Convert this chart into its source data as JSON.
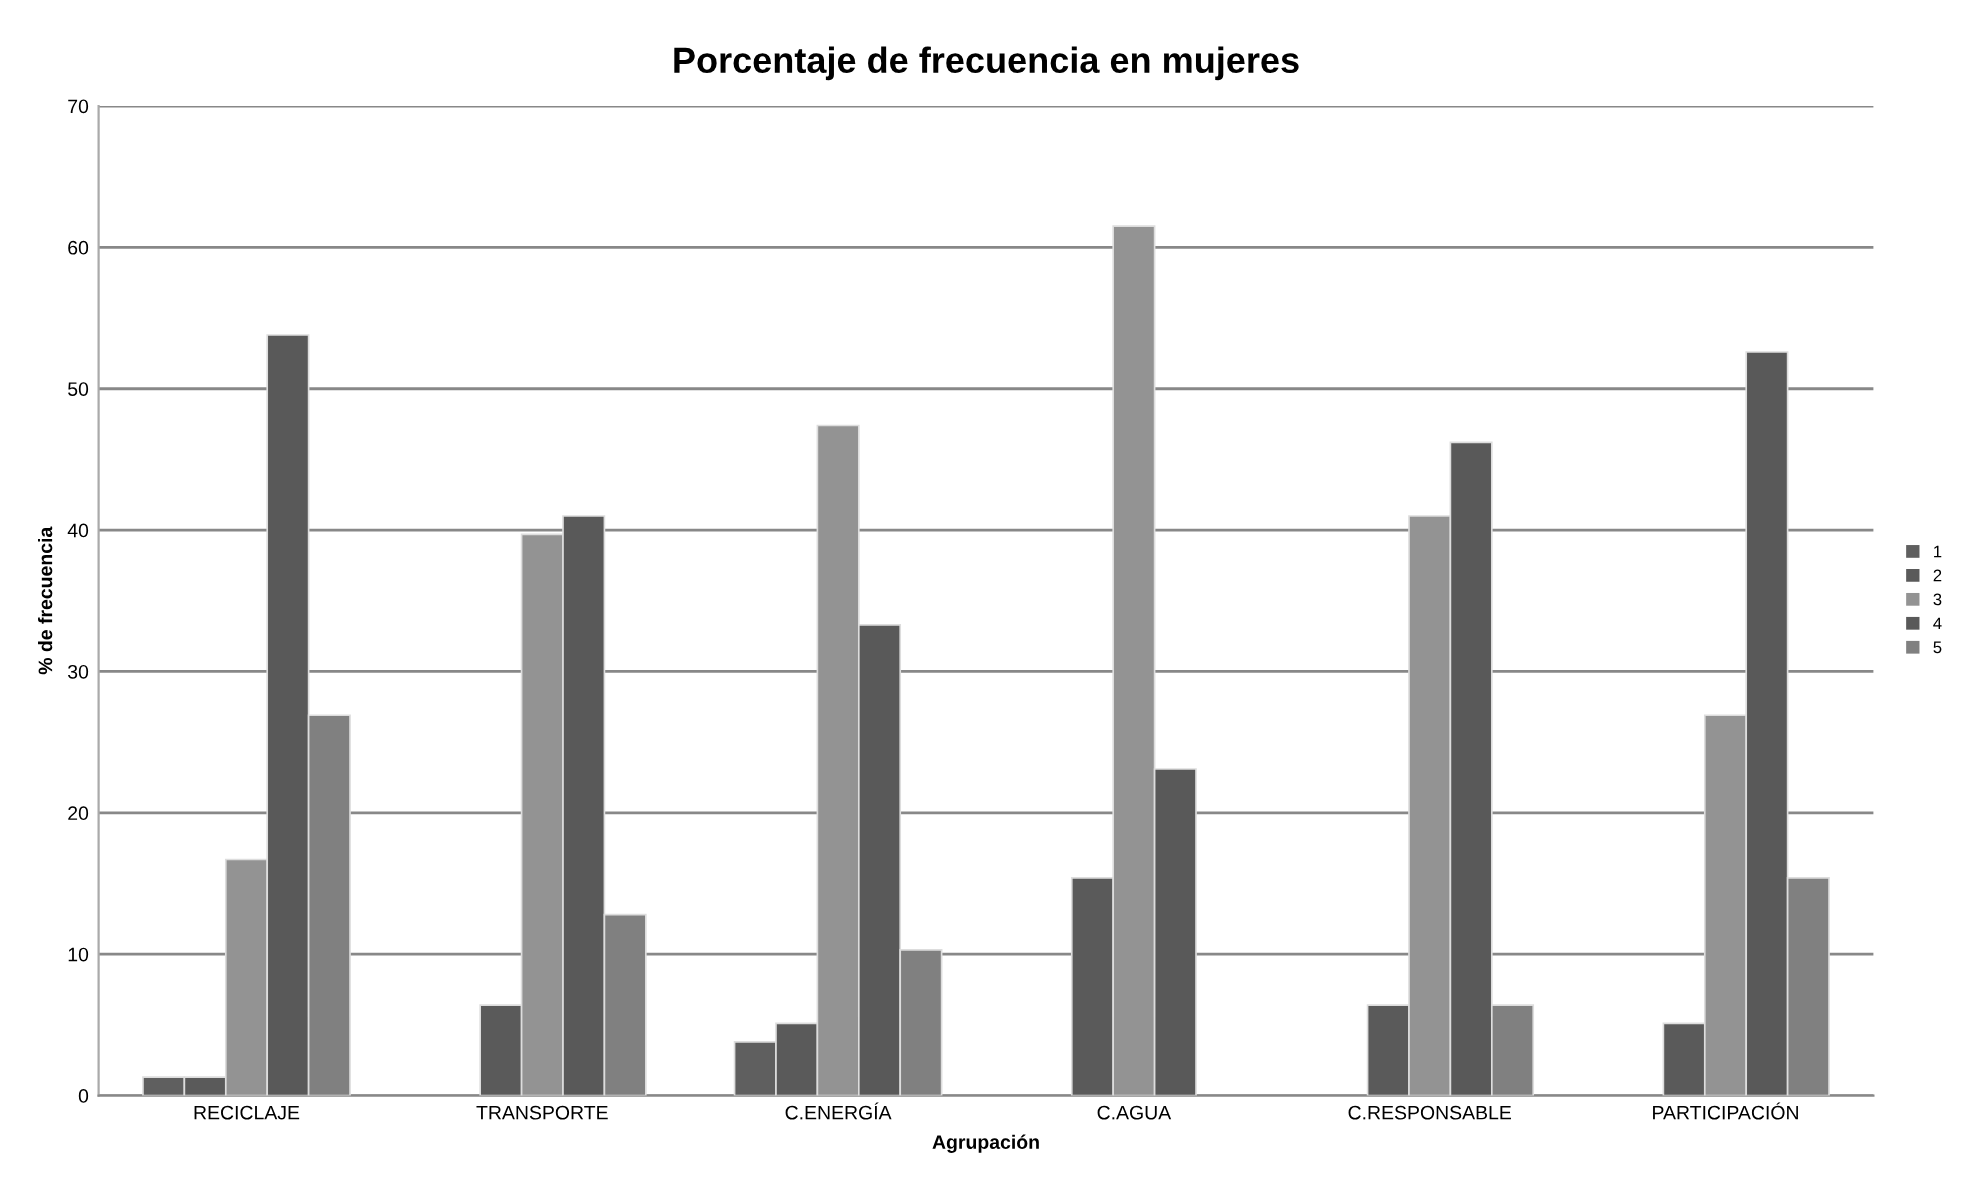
{
  "chart_data": {
    "type": "bar",
    "title": "Porcentaje de frecuencia en mujeres",
    "xlabel": "Agrupación",
    "ylabel": "% de frecuencia",
    "categories": [
      "RECICLAJE",
      "TRANSPORTE",
      "C.ENERGÍA",
      "C.AGUA",
      "C.RESPONSABLE",
      "PARTICIPACIÓN"
    ],
    "series": [
      {
        "name": "1",
        "color": "#5f5f5f",
        "values": [
          1.3,
          null,
          3.8,
          null,
          null,
          null
        ]
      },
      {
        "name": "2",
        "color": "#5a5a5a",
        "values": [
          1.3,
          6.4,
          5.1,
          15.4,
          6.4,
          5.1
        ]
      },
      {
        "name": "3",
        "color": "#939393",
        "values": [
          16.7,
          39.7,
          47.4,
          61.5,
          41.0,
          26.9
        ]
      },
      {
        "name": "4",
        "color": "#595959",
        "values": [
          53.8,
          41.0,
          33.3,
          23.1,
          46.2,
          52.6
        ]
      },
      {
        "name": "5",
        "color": "#808080",
        "values": [
          26.9,
          12.8,
          10.3,
          null,
          6.4,
          15.4
        ]
      }
    ],
    "ylim": [
      0,
      70
    ],
    "yticks": [
      0,
      10,
      20,
      30,
      40,
      50,
      60,
      70
    ],
    "grid": "y",
    "legend": "right"
  }
}
